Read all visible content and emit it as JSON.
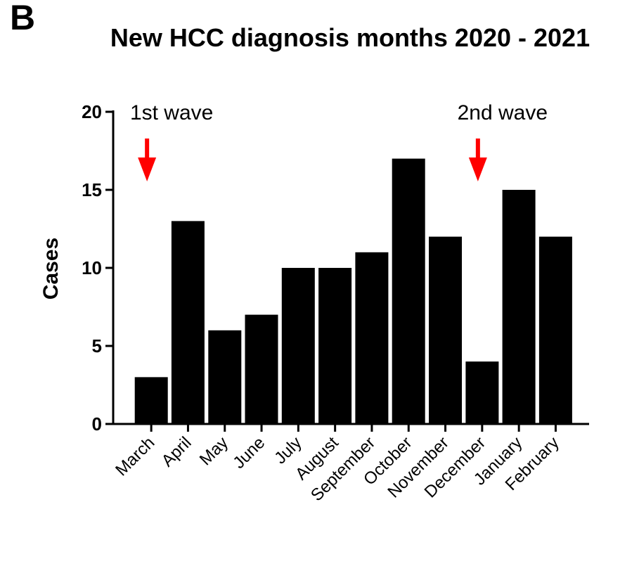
{
  "panel_label": "B",
  "chart_data": {
    "type": "bar",
    "title": "New HCC diagnosis months 2020 - 2021",
    "xlabel": "",
    "ylabel": "Cases",
    "categories": [
      "March",
      "April",
      "May",
      "June",
      "July",
      "August",
      "September",
      "October",
      "November",
      "December",
      "January",
      "February"
    ],
    "values": [
      3,
      13,
      6,
      7,
      10,
      10,
      11,
      17,
      12,
      4,
      15,
      12
    ],
    "ylim": [
      0,
      20
    ],
    "yticks": [
      "0",
      "5",
      "10",
      "15",
      "20"
    ],
    "bar_color": "#000000",
    "grid": false,
    "annotations": [
      {
        "text": "1st wave",
        "category": "March",
        "arrow_color": "#ff0000"
      },
      {
        "text": "2nd wave",
        "category": "December",
        "arrow_color": "#ff0000"
      }
    ]
  }
}
